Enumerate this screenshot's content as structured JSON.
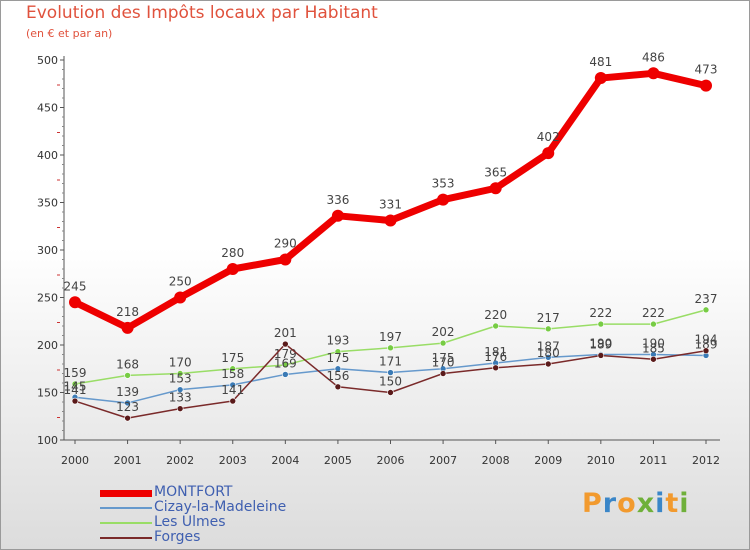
{
  "chart_data": {
    "type": "line",
    "title": "Evolution des Impôts locaux par Habitant",
    "subtitle": "(en € et par an)",
    "xlabel": "",
    "ylabel": "",
    "ylim": [
      100,
      500
    ],
    "yticks": [
      "100",
      "150",
      "200",
      "250",
      "300",
      "350",
      "400",
      "450",
      "500"
    ],
    "categories": [
      "2000",
      "2001",
      "2002",
      "2003",
      "2004",
      "2005",
      "2006",
      "2007",
      "2008",
      "2009",
      "2010",
      "2011",
      "2012"
    ],
    "series": [
      {
        "name": "Les Ulmes",
        "color": "#99dd66",
        "marker": "#77cc44",
        "values": [
          159,
          168,
          170,
          175,
          179,
          193,
          197,
          202,
          220,
          217,
          222,
          222,
          237
        ],
        "labels": [
          "159",
          "168",
          "170",
          "175",
          "179",
          "193",
          "197",
          "202",
          "220",
          "217",
          "222",
          "222",
          "237"
        ]
      },
      {
        "name": "Cizay-la-Madeleine",
        "color": "#6699cc",
        "marker": "#3a7ab5",
        "values": [
          145,
          139,
          153,
          158,
          169,
          175,
          171,
          175,
          181,
          187,
          190,
          190,
          189
        ],
        "labels": [
          "145",
          "139",
          "153",
          "158",
          "169",
          "175",
          "171",
          "175",
          "181",
          "187",
          "190",
          "190",
          "189"
        ]
      },
      {
        "name": "Forges",
        "color": "#7a2a2a",
        "marker": "#5a1a1a",
        "values": [
          141,
          123,
          133,
          141,
          201,
          156,
          150,
          170,
          176,
          180,
          189,
          185,
          194
        ],
        "labels": [
          "141",
          "123",
          "133",
          "141",
          "201",
          "156",
          "150",
          "170",
          "176",
          "180",
          "189",
          "185",
          "194"
        ]
      },
      {
        "name": "MONTFORT",
        "color": "#ee0000",
        "marker": "#ee0000",
        "values": [
          245,
          218,
          250,
          280,
          290,
          336,
          331,
          353,
          365,
          402,
          481,
          486,
          473
        ],
        "labels": [
          "245",
          "218",
          "250",
          "280",
          "290",
          "336",
          "331",
          "353",
          "365",
          "402",
          "481",
          "486",
          "473"
        ]
      }
    ]
  },
  "legend": [
    {
      "label": "MONTFORT",
      "color": "#ee0000"
    },
    {
      "label": "Cizay-la-Madeleine",
      "color": "#6699cc"
    },
    {
      "label": "Les Ulmes",
      "color": "#99dd66"
    },
    {
      "label": "Forges",
      "color": "#7a2a2a"
    }
  ],
  "logo": {
    "letters": [
      "P",
      "r",
      "o",
      "x",
      "i",
      "t",
      "i"
    ],
    "colors": [
      "#f29a2e",
      "#3a86c8",
      "#f29a2e",
      "#6fb03a",
      "#3a86c8",
      "#f29a2e",
      "#6fb03a"
    ]
  }
}
